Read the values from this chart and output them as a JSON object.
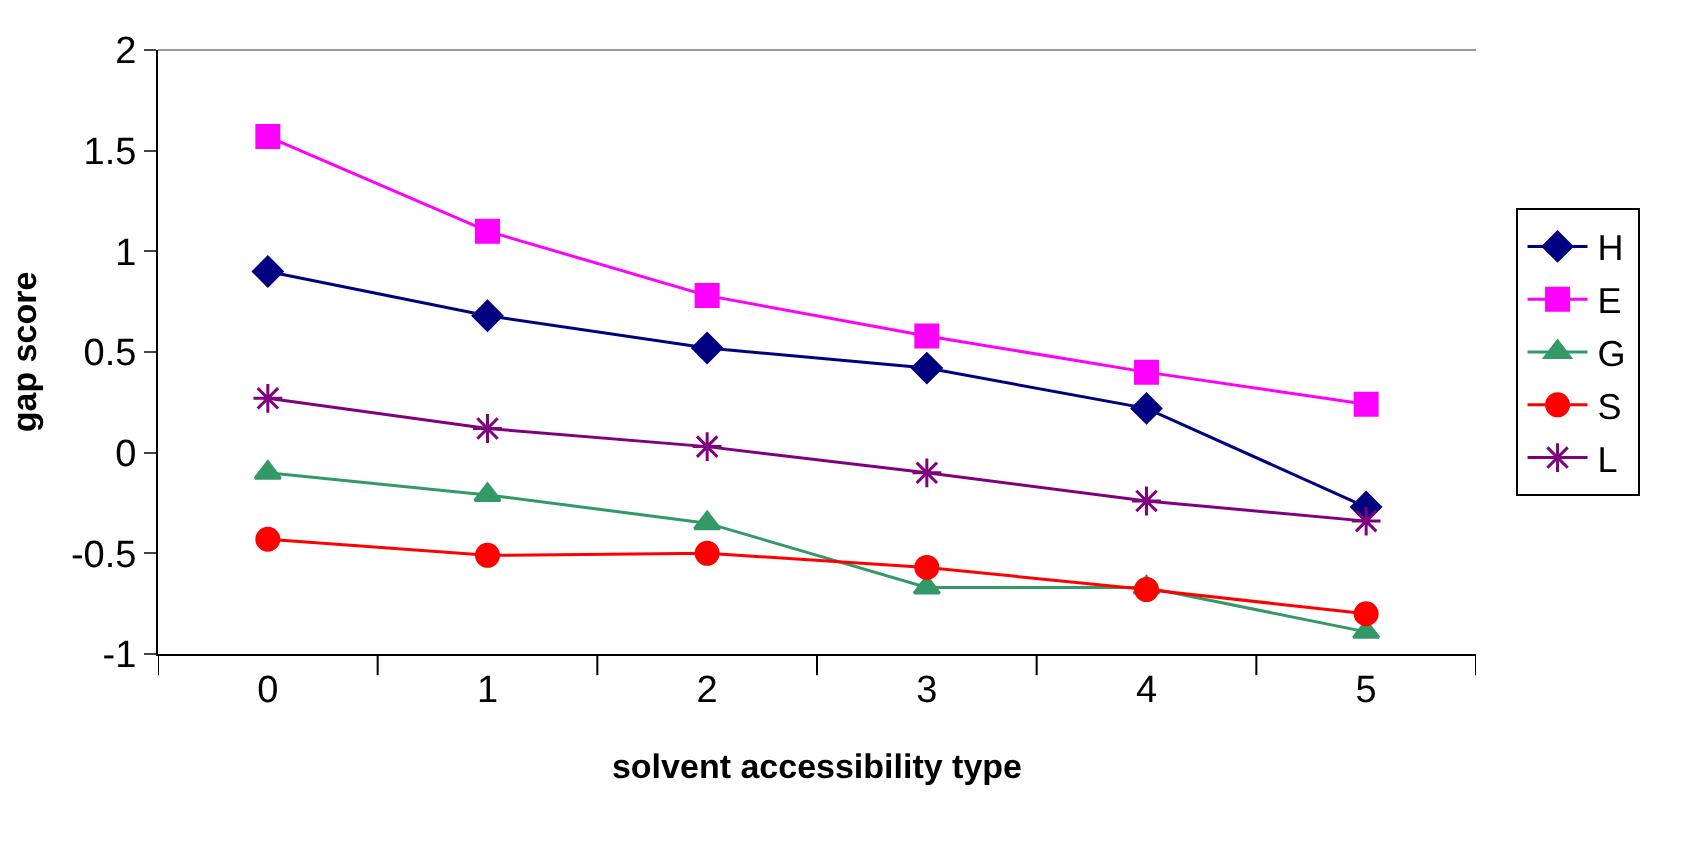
{
  "chart_data": {
    "type": "line",
    "xlabel": "solvent accessibility type",
    "ylabel": "gap score",
    "categories": [
      "0",
      "1",
      "2",
      "3",
      "4",
      "5"
    ],
    "ylim": [
      -1,
      2
    ],
    "yticks": [
      {
        "value": -1,
        "label": "-1"
      },
      {
        "value": -0.5,
        "label": "-0.5"
      },
      0,
      0.5,
      1,
      1.5,
      2
    ],
    "legend": "right",
    "line_style": "solid",
    "series": [
      {
        "name": "H",
        "color": "#000080",
        "marker": "diamond",
        "values": [
          0.9,
          0.68,
          0.52,
          0.42,
          0.22,
          -0.27
        ]
      },
      {
        "name": "E",
        "color": "#ff00ff",
        "marker": "square",
        "values": [
          1.57,
          1.1,
          0.78,
          0.58,
          0.4,
          0.24
        ]
      },
      {
        "name": "G",
        "color": "#339966",
        "marker": "triangle",
        "values": [
          -0.1,
          -0.21,
          -0.35,
          -0.67,
          -0.67,
          -0.89
        ]
      },
      {
        "name": "S",
        "color": "#ff0000",
        "marker": "circle",
        "values": [
          -0.43,
          -0.51,
          -0.5,
          -0.57,
          -0.68,
          -0.8
        ]
      },
      {
        "name": "L",
        "color": "#800080",
        "marker": "cross",
        "values": [
          0.27,
          0.12,
          0.03,
          -0.1,
          -0.24,
          -0.34
        ]
      }
    ]
  }
}
